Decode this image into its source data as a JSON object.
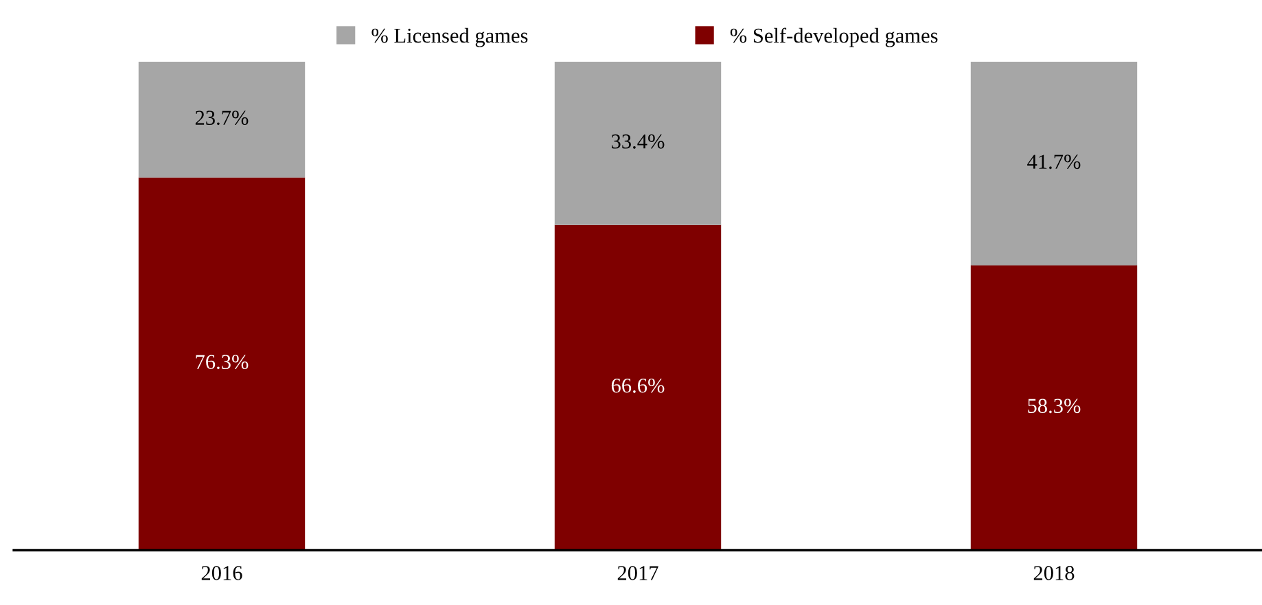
{
  "chart_data": {
    "type": "bar",
    "stacked": true,
    "categories": [
      "2016",
      "2017",
      "2018"
    ],
    "series": [
      {
        "name": "% Self-developed games",
        "color": "#7f0000",
        "values": [
          76.3,
          66.6,
          58.3
        ],
        "value_labels": [
          "76.3%",
          "66.6%",
          "58.3%"
        ]
      },
      {
        "name": "% Licensed games",
        "color": "#a6a6a6",
        "values": [
          23.7,
          33.4,
          41.7
        ],
        "value_labels": [
          "23.7%",
          "33.4%",
          "41.7%"
        ]
      }
    ],
    "legend": "top",
    "grid": false
  }
}
